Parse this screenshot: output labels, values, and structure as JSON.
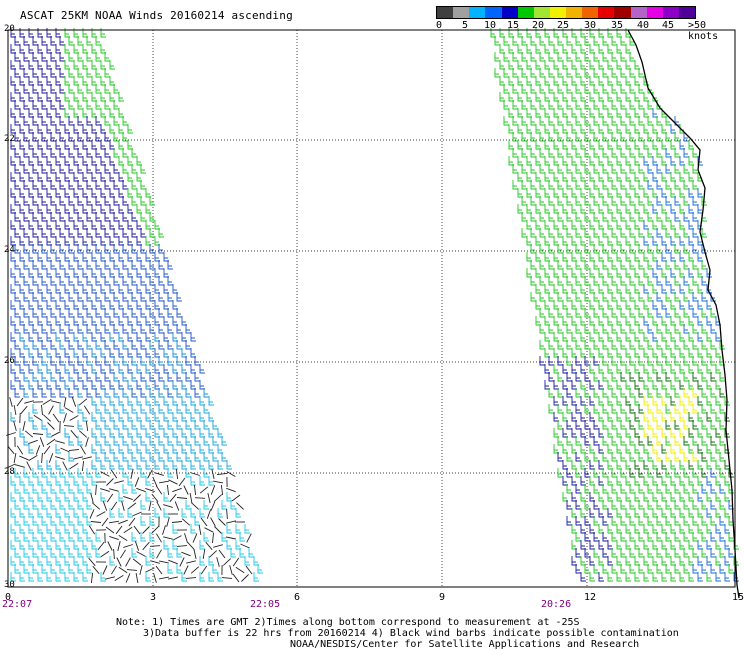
{
  "title": "ASCAT 25KM NOAA Winds 20160214 ascending",
  "colorbar": {
    "colors": [
      "#404040",
      "#a0a0a0",
      "#00b4ff",
      "#0064ff",
      "#0000c8",
      "#00c800",
      "#a0e632",
      "#f0f000",
      "#f0b400",
      "#f06400",
      "#e60000",
      "#a00000",
      "#b464c8",
      "#e600e6",
      "#8c00c8",
      "#500096"
    ],
    "labels": [
      "0",
      "5",
      "10",
      "15",
      "20",
      "25",
      "30",
      "35",
      "40",
      "45",
      ">50 knots"
    ]
  },
  "lat_labels": [
    "20",
    "22",
    "24",
    "26",
    "28",
    "30"
  ],
  "lon_labels": [
    "0",
    "3",
    "6",
    "9",
    "12",
    "15"
  ],
  "time_labels": [
    "22:07",
    "22:05",
    "20:26"
  ],
  "notes": {
    "line1": "Note: 1) Times are GMT 2)Times along bottom correspond to measurement at -25S",
    "line2": "3)Data buffer is 22 hrs from 20160214 4) Black wind barbs indicate possible contamination",
    "line3": "NOAA/NESDIS/Center for Satellite Applications and Research"
  }
}
